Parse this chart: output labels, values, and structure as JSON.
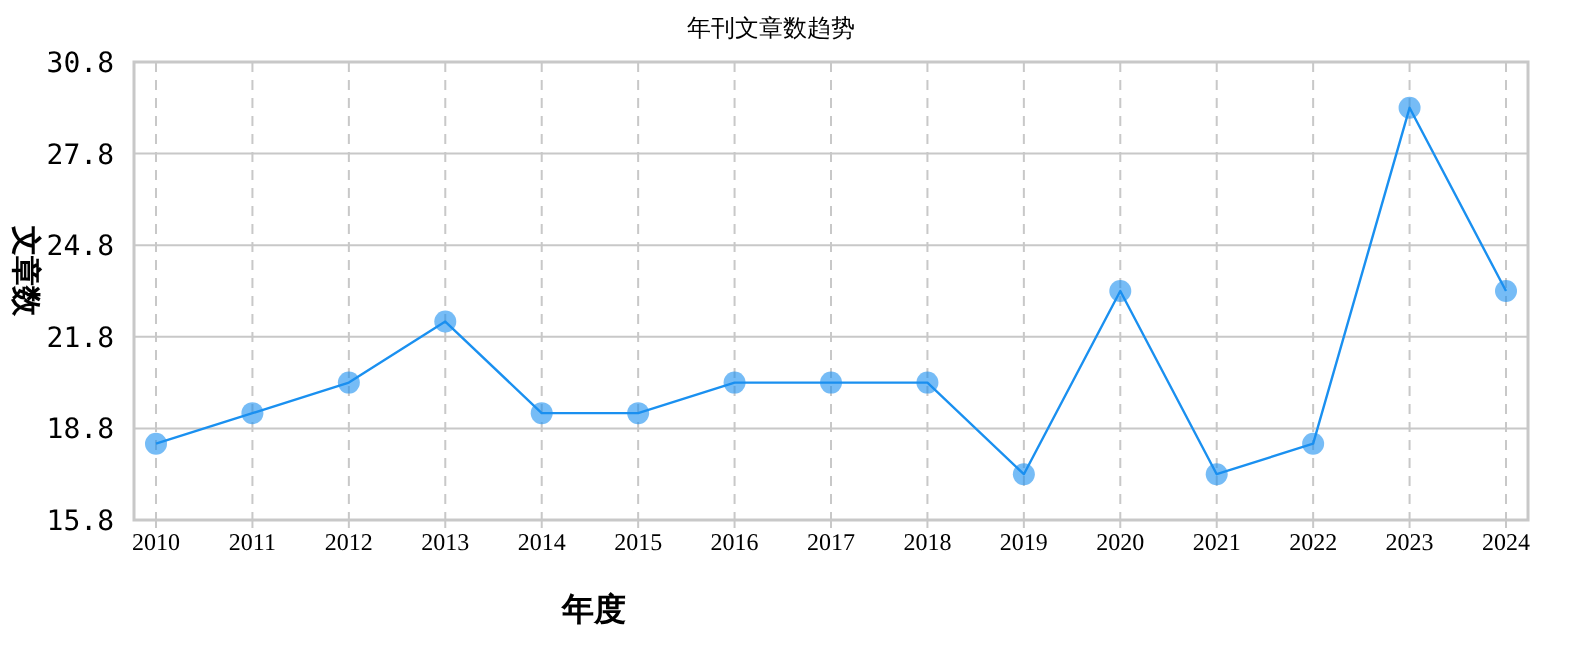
{
  "chart_data": {
    "type": "line",
    "title": "年刊文章数趋势",
    "xlabel": "年度",
    "ylabel": "文章数",
    "categories": [
      "2010",
      "2011",
      "2012",
      "2013",
      "2014",
      "2015",
      "2016",
      "2017",
      "2018",
      "2019",
      "2020",
      "2021",
      "2022",
      "2023",
      "2024"
    ],
    "series": [
      {
        "color": "#1a90f0",
        "values": [
          18.3,
          19.3,
          20.3,
          22.3,
          19.3,
          19.3,
          20.3,
          20.3,
          20.3,
          17.3,
          23.3,
          17.3,
          18.3,
          29.3,
          23.3
        ]
      }
    ],
    "ylim": [
      15.8,
      30.8
    ],
    "yticks": [
      15.8,
      18.8,
      21.8,
      24.8,
      27.8,
      30.8
    ],
    "grid": true,
    "marker": "circle",
    "line_style": "solid"
  }
}
